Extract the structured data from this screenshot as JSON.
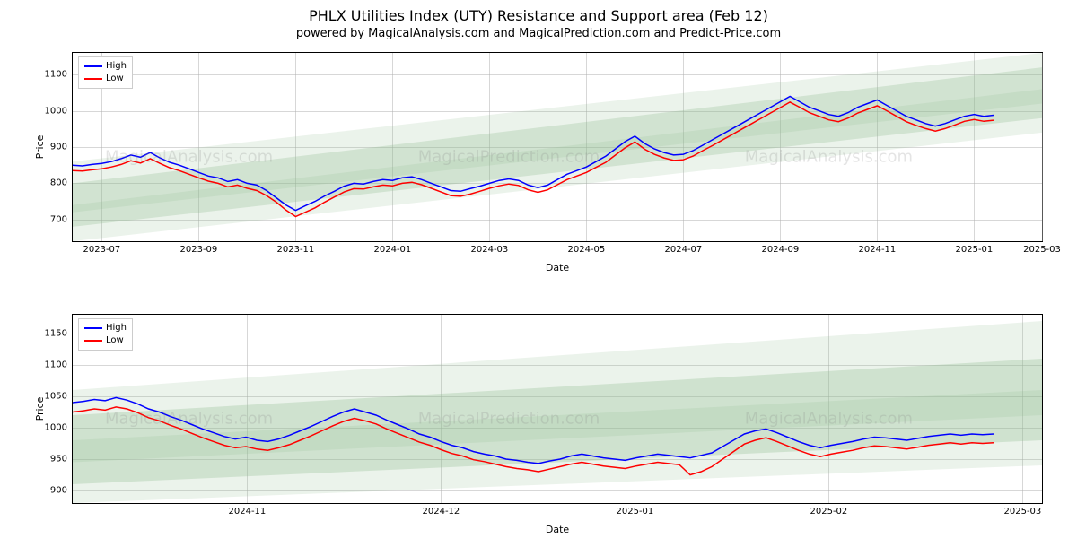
{
  "title": "PHLX Utilities Index (UTY) Resistance and Support area (Feb 12)",
  "subtitle": "powered by MagicalAnalysis.com and MagicalPrediction.com and Predict-Price.com",
  "watermarks": [
    "MagicalAnalysis.com",
    "MagicalPrediction.com"
  ],
  "colors": {
    "high": "#0000ff",
    "low": "#ff0000",
    "band_fill": "#8fbc8f",
    "grid": "#b0b0b0",
    "watermark": "#888888",
    "axis_text": "#000000",
    "background": "#ffffff"
  },
  "legend": {
    "items": [
      {
        "label": "High",
        "color_key": "high"
      },
      {
        "label": "Low",
        "color_key": "low"
      }
    ]
  },
  "axis_labels": {
    "x": "Date",
    "y": "Price"
  },
  "line_width": 1.5,
  "top_chart": {
    "type": "line",
    "ylim": [
      640,
      1160
    ],
    "yticks": [
      700,
      800,
      900,
      1000,
      1100
    ],
    "yticklabels": [
      "700",
      "800",
      "900",
      "1000",
      "1100"
    ],
    "xlim": [
      0,
      100
    ],
    "xticks": [
      3,
      13,
      23,
      33,
      43,
      53,
      63,
      73,
      83,
      93,
      100
    ],
    "xticklabels": [
      "2023-07",
      "2023-09",
      "2023-11",
      "2024-01",
      "2024-03",
      "2024-05",
      "2024-07",
      "2024-09",
      "2024-11",
      "2025-01",
      "2025-03"
    ],
    "bands": [
      {
        "y1_start": 640,
        "y1_end": 940,
        "y2_start": 740,
        "y2_end": 1060,
        "opacity": 0.18
      },
      {
        "y1_start": 680,
        "y1_end": 980,
        "y2_start": 800,
        "y2_end": 1120,
        "opacity": 0.28
      },
      {
        "y1_start": 720,
        "y1_end": 1020,
        "y2_start": 860,
        "y2_end": 1160,
        "opacity": 0.18
      }
    ],
    "series_high": [
      850,
      848,
      852,
      855,
      860,
      868,
      878,
      872,
      885,
      870,
      858,
      850,
      840,
      830,
      820,
      815,
      805,
      810,
      800,
      795,
      780,
      760,
      740,
      725,
      738,
      750,
      765,
      778,
      792,
      800,
      798,
      805,
      810,
      808,
      815,
      818,
      810,
      800,
      790,
      780,
      778,
      785,
      792,
      800,
      808,
      812,
      808,
      795,
      788,
      795,
      810,
      825,
      835,
      845,
      860,
      875,
      895,
      915,
      930,
      910,
      895,
      885,
      878,
      880,
      890,
      905,
      920,
      935,
      950,
      965,
      980,
      995,
      1010,
      1025,
      1040,
      1025,
      1010,
      1000,
      990,
      985,
      995,
      1010,
      1020,
      1030,
      1015,
      1000,
      985,
      975,
      965,
      958,
      965,
      975,
      985,
      990,
      985,
      988
    ],
    "series_low": [
      835,
      834,
      837,
      840,
      845,
      852,
      862,
      856,
      868,
      855,
      843,
      835,
      825,
      815,
      806,
      800,
      790,
      795,
      786,
      780,
      766,
      748,
      726,
      708,
      720,
      732,
      748,
      762,
      776,
      785,
      784,
      790,
      795,
      793,
      800,
      803,
      796,
      786,
      776,
      766,
      764,
      770,
      778,
      786,
      793,
      798,
      794,
      782,
      775,
      782,
      796,
      810,
      820,
      830,
      844,
      858,
      878,
      898,
      914,
      894,
      880,
      870,
      863,
      865,
      875,
      890,
      904,
      919,
      934,
      949,
      964,
      979,
      994,
      1009,
      1024,
      1010,
      995,
      985,
      975,
      970,
      980,
      994,
      1004,
      1014,
      1000,
      985,
      970,
      960,
      951,
      944,
      951,
      961,
      971,
      976,
      971,
      974
    ]
  },
  "bottom_chart": {
    "type": "line",
    "ylim": [
      880,
      1180
    ],
    "yticks": [
      900,
      950,
      1000,
      1050,
      1100,
      1150
    ],
    "yticklabels": [
      "900",
      "950",
      "1000",
      "1050",
      "1100",
      "1150"
    ],
    "xlim": [
      0,
      100
    ],
    "xticks": [
      18,
      38,
      58,
      78,
      98
    ],
    "xticklabels": [
      "2024-11",
      "2024-12",
      "2025-01",
      "2025-02",
      "2025-03"
    ],
    "bands": [
      {
        "y1_start": 880,
        "y1_end": 940,
        "y2_start": 980,
        "y2_end": 1060,
        "opacity": 0.18
      },
      {
        "y1_start": 910,
        "y1_end": 980,
        "y2_start": 1020,
        "y2_end": 1110,
        "opacity": 0.3
      },
      {
        "y1_start": 945,
        "y1_end": 1020,
        "y2_start": 1060,
        "y2_end": 1170,
        "opacity": 0.18
      }
    ],
    "series_high": [
      1040,
      1042,
      1045,
      1043,
      1048,
      1044,
      1038,
      1030,
      1025,
      1018,
      1012,
      1005,
      998,
      992,
      986,
      982,
      985,
      980,
      978,
      982,
      988,
      995,
      1002,
      1010,
      1018,
      1025,
      1030,
      1025,
      1020,
      1012,
      1005,
      998,
      990,
      985,
      978,
      972,
      968,
      962,
      958,
      955,
      950,
      948,
      945,
      943,
      947,
      950,
      955,
      958,
      955,
      952,
      950,
      948,
      952,
      955,
      958,
      956,
      954,
      952,
      956,
      960,
      970,
      980,
      990,
      995,
      998,
      992,
      985,
      978,
      972,
      968,
      972,
      975,
      978,
      982,
      985,
      984,
      982,
      980,
      983,
      986,
      988,
      990,
      988,
      990,
      989,
      990
    ],
    "series_low": [
      1025,
      1027,
      1030,
      1028,
      1033,
      1030,
      1024,
      1016,
      1011,
      1004,
      998,
      991,
      984,
      978,
      972,
      968,
      970,
      966,
      964,
      968,
      973,
      980,
      987,
      995,
      1003,
      1010,
      1015,
      1011,
      1006,
      998,
      991,
      984,
      977,
      972,
      965,
      959,
      955,
      949,
      946,
      942,
      938,
      935,
      933,
      930,
      934,
      938,
      942,
      945,
      942,
      939,
      937,
      935,
      939,
      942,
      945,
      943,
      941,
      925,
      930,
      938,
      950,
      962,
      974,
      980,
      984,
      978,
      971,
      964,
      958,
      954,
      958,
      961,
      964,
      968,
      971,
      970,
      968,
      966,
      969,
      972,
      974,
      976,
      974,
      976,
      975,
      976
    ]
  }
}
